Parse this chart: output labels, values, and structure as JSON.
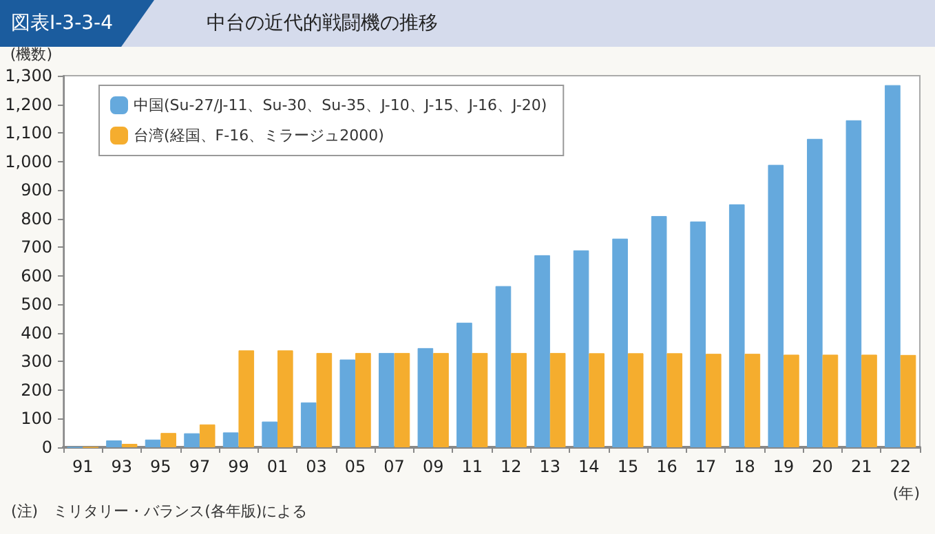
{
  "chart_data": {
    "type": "bar",
    "title": "中台の近代的戦闘機の推移",
    "subtitle": "図表Ⅰ-3-3-4",
    "xlabel": "(年)",
    "ylabel": "(機数)",
    "annotations": [
      "(注)　ミリタリー・バランス(各年版)による"
    ],
    "categories": [
      "91",
      "93",
      "95",
      "97",
      "99",
      "01",
      "03",
      "05",
      "07",
      "09",
      "11",
      "12",
      "13",
      "14",
      "15",
      "16",
      "17",
      "18",
      "19",
      "20",
      "21",
      "22"
    ],
    "series": [
      {
        "name": "中国(Su-27/J-11、Su-30、Su-35、J-10、J-15、J-16、J-20)",
        "color": "#65a9dd",
        "values": [
          0,
          24,
          27,
          49,
          52,
          90,
          157,
          307,
          330,
          347,
          436,
          564,
          672,
          689,
          730,
          809,
          790,
          850,
          988,
          1079,
          1144,
          1267
        ]
      },
      {
        "name": "台湾(経国、F-16、ミラージュ2000)",
        "color": "#f5ad2e",
        "values": [
          0,
          12,
          50,
          80,
          339,
          339,
          330,
          330,
          330,
          330,
          330,
          330,
          330,
          329,
          329,
          329,
          327,
          327,
          324,
          324,
          324,
          323
        ]
      }
    ],
    "ylim": [
      0,
      1300
    ],
    "yticks": [
      0,
      100,
      200,
      300,
      400,
      500,
      600,
      700,
      800,
      900,
      {
        "value": 1000,
        "label": "1,000"
      },
      {
        "value": 1100,
        "label": "1,100"
      },
      {
        "value": 1200,
        "label": "1,200"
      },
      {
        "value": 1300,
        "label": "1,300"
      }
    ],
    "grid": false,
    "legend": "top left"
  }
}
